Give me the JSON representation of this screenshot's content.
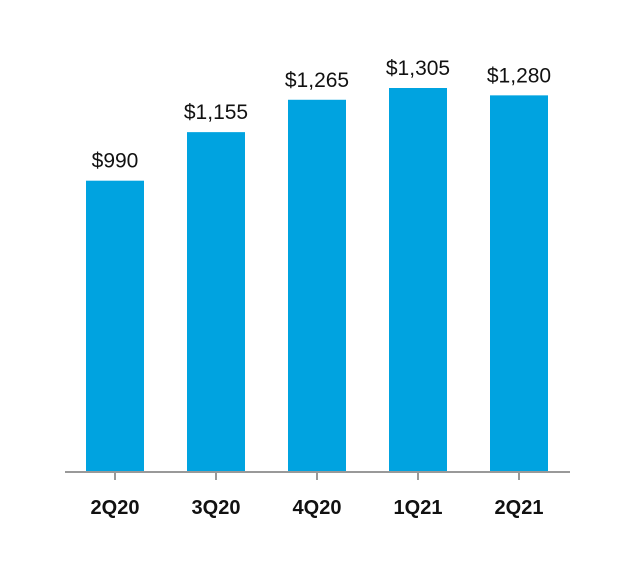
{
  "chart_data": {
    "type": "bar",
    "categories": [
      "2Q20",
      "3Q20",
      "4Q20",
      "1Q21",
      "2Q21"
    ],
    "values": [
      990,
      1155,
      1265,
      1305,
      1280
    ],
    "data_labels": [
      "$990",
      "$1,155",
      "$1,265",
      "$1,305",
      "$1,280"
    ],
    "title": "",
    "xlabel": "",
    "ylabel": "",
    "ylim": [
      0,
      1400
    ],
    "grid": false,
    "legend": "none",
    "colors": {
      "bar": "#00A3E0",
      "axis": "#999999",
      "text": "#111111"
    }
  }
}
